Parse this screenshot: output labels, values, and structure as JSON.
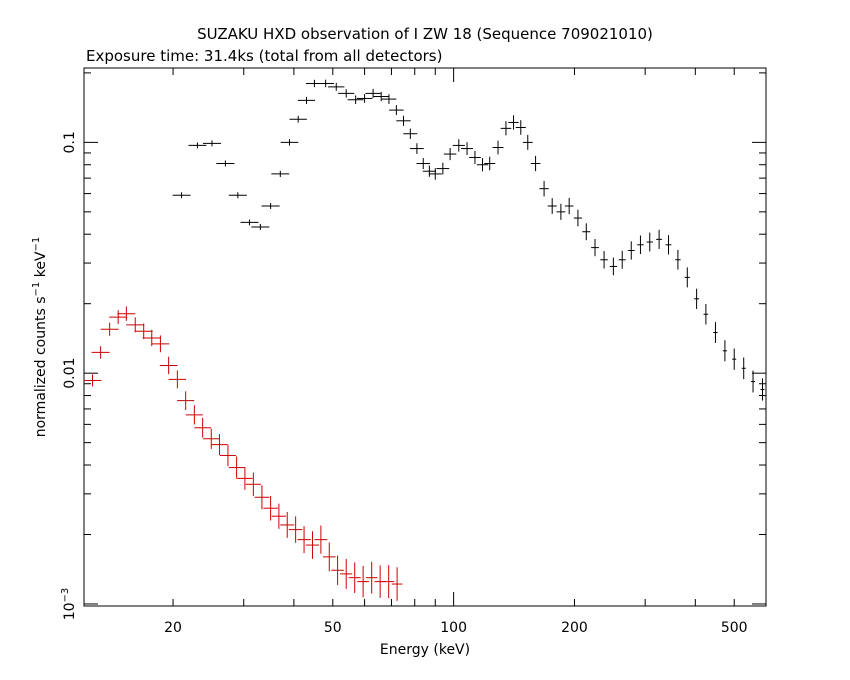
{
  "chart_data": {
    "type": "scatter",
    "title": "SUZAKU HXD observation of I ZW 18 (Sequence 709021010)",
    "subtitle": "Exposure time: 31.4ks (total from all detectors)",
    "xlabel": "Energy (keV)",
    "ylabel_text": "normalized counts s",
    "ylabel_exp1": "−1",
    "ylabel_mid": " keV",
    "ylabel_exp2": "−1",
    "x_scale": "log",
    "y_scale": "log",
    "xlim": [
      12,
      600
    ],
    "ylim": [
      0.00098,
      0.21
    ],
    "grid": false,
    "x_ticks": [
      {
        "v": 20,
        "label": "20"
      },
      {
        "v": 50,
        "label": "50"
      },
      {
        "v": 100,
        "label": "100"
      },
      {
        "v": 200,
        "label": "200"
      },
      {
        "v": 500,
        "label": "500"
      }
    ],
    "y_ticks": [
      {
        "v": 0.1,
        "label": "0.1"
      },
      {
        "v": 0.01,
        "label": "0.01"
      }
    ],
    "y_tick_min": {
      "base": "10",
      "exp": "−3",
      "v": 0.001
    },
    "series": [
      {
        "color": "#000000",
        "points": [
          [
            21,
            0.059
          ],
          [
            23,
            0.097
          ],
          [
            25,
            0.099
          ],
          [
            27,
            0.081
          ],
          [
            29,
            0.059
          ],
          [
            31,
            0.045
          ],
          [
            33,
            0.043
          ],
          [
            35,
            0.053
          ],
          [
            37,
            0.073
          ],
          [
            39,
            0.1
          ],
          [
            41,
            0.126
          ],
          [
            43,
            0.152
          ],
          [
            45,
            0.18
          ],
          [
            48,
            0.18
          ],
          [
            51,
            0.174
          ],
          [
            54,
            0.163
          ],
          [
            57,
            0.153
          ],
          [
            60,
            0.155
          ],
          [
            63,
            0.163
          ],
          [
            66,
            0.158
          ],
          [
            69,
            0.154
          ],
          [
            72,
            0.138
          ],
          [
            75,
            0.124
          ],
          [
            78,
            0.109
          ],
          [
            81,
            0.094
          ],
          [
            84,
            0.081
          ],
          [
            87,
            0.075
          ],
          [
            90,
            0.073
          ],
          [
            94,
            0.077
          ],
          [
            98,
            0.089
          ],
          [
            103,
            0.097
          ],
          [
            108,
            0.094
          ],
          [
            113,
            0.086
          ],
          [
            118,
            0.08
          ],
          [
            123,
            0.081
          ],
          [
            129,
            0.095
          ],
          [
            135,
            0.115
          ],
          [
            141,
            0.122
          ],
          [
            147,
            0.116
          ],
          [
            153,
            0.1
          ],
          [
            160,
            0.081
          ],
          [
            168,
            0.063
          ],
          [
            176,
            0.053
          ],
          [
            185,
            0.05
          ],
          [
            194,
            0.053
          ],
          [
            204,
            0.047
          ],
          [
            214,
            0.041
          ],
          [
            225,
            0.035
          ],
          [
            237,
            0.031
          ],
          [
            250,
            0.029
          ],
          [
            263,
            0.031
          ],
          [
            277,
            0.034
          ],
          [
            292,
            0.036
          ],
          [
            308,
            0.037
          ],
          [
            325,
            0.038
          ],
          [
            343,
            0.036
          ],
          [
            362,
            0.031
          ],
          [
            382,
            0.026
          ],
          [
            403,
            0.021
          ],
          [
            425,
            0.018
          ],
          [
            449,
            0.015
          ],
          [
            474,
            0.0125
          ],
          [
            500,
            0.0115
          ],
          [
            528,
            0.0105
          ],
          [
            557,
            0.0092
          ],
          [
            588,
            0.0085
          ]
        ]
      },
      {
        "color": "#cc0000",
        "points": [
          [
            12.6,
            0.0093
          ],
          [
            13.2,
            0.0123
          ],
          [
            13.9,
            0.0155
          ],
          [
            14.6,
            0.0175
          ],
          [
            15.3,
            0.0181
          ],
          [
            16.1,
            0.0162
          ],
          [
            16.9,
            0.0152
          ],
          [
            17.7,
            0.0142
          ],
          [
            18.6,
            0.0134
          ],
          [
            19.5,
            0.0108
          ],
          [
            20.5,
            0.0094
          ],
          [
            21.5,
            0.0076
          ],
          [
            22.6,
            0.0066
          ],
          [
            23.7,
            0.0058
          ],
          [
            24.9,
            0.0052
          ],
          [
            26.1,
            0.0049
          ],
          [
            27.4,
            0.0044
          ],
          [
            28.8,
            0.0039
          ],
          [
            30.2,
            0.0035
          ],
          [
            31.7,
            0.0033
          ],
          [
            33.3,
            0.0029
          ],
          [
            35,
            0.0026
          ],
          [
            36.7,
            0.0024
          ],
          [
            38.5,
            0.0022
          ],
          [
            40.4,
            0.0021
          ],
          [
            42.4,
            0.0019
          ],
          [
            44.5,
            0.0018
          ],
          [
            46.7,
            0.0019
          ],
          [
            49,
            0.0016
          ],
          [
            51.4,
            0.0014
          ],
          [
            54,
            0.00135
          ],
          [
            56.7,
            0.0013
          ],
          [
            59.5,
            0.00125
          ],
          [
            62.5,
            0.0013
          ],
          [
            65.6,
            0.00125
          ],
          [
            68.9,
            0.00125
          ],
          [
            72.3,
            0.00122
          ]
        ]
      }
    ]
  }
}
